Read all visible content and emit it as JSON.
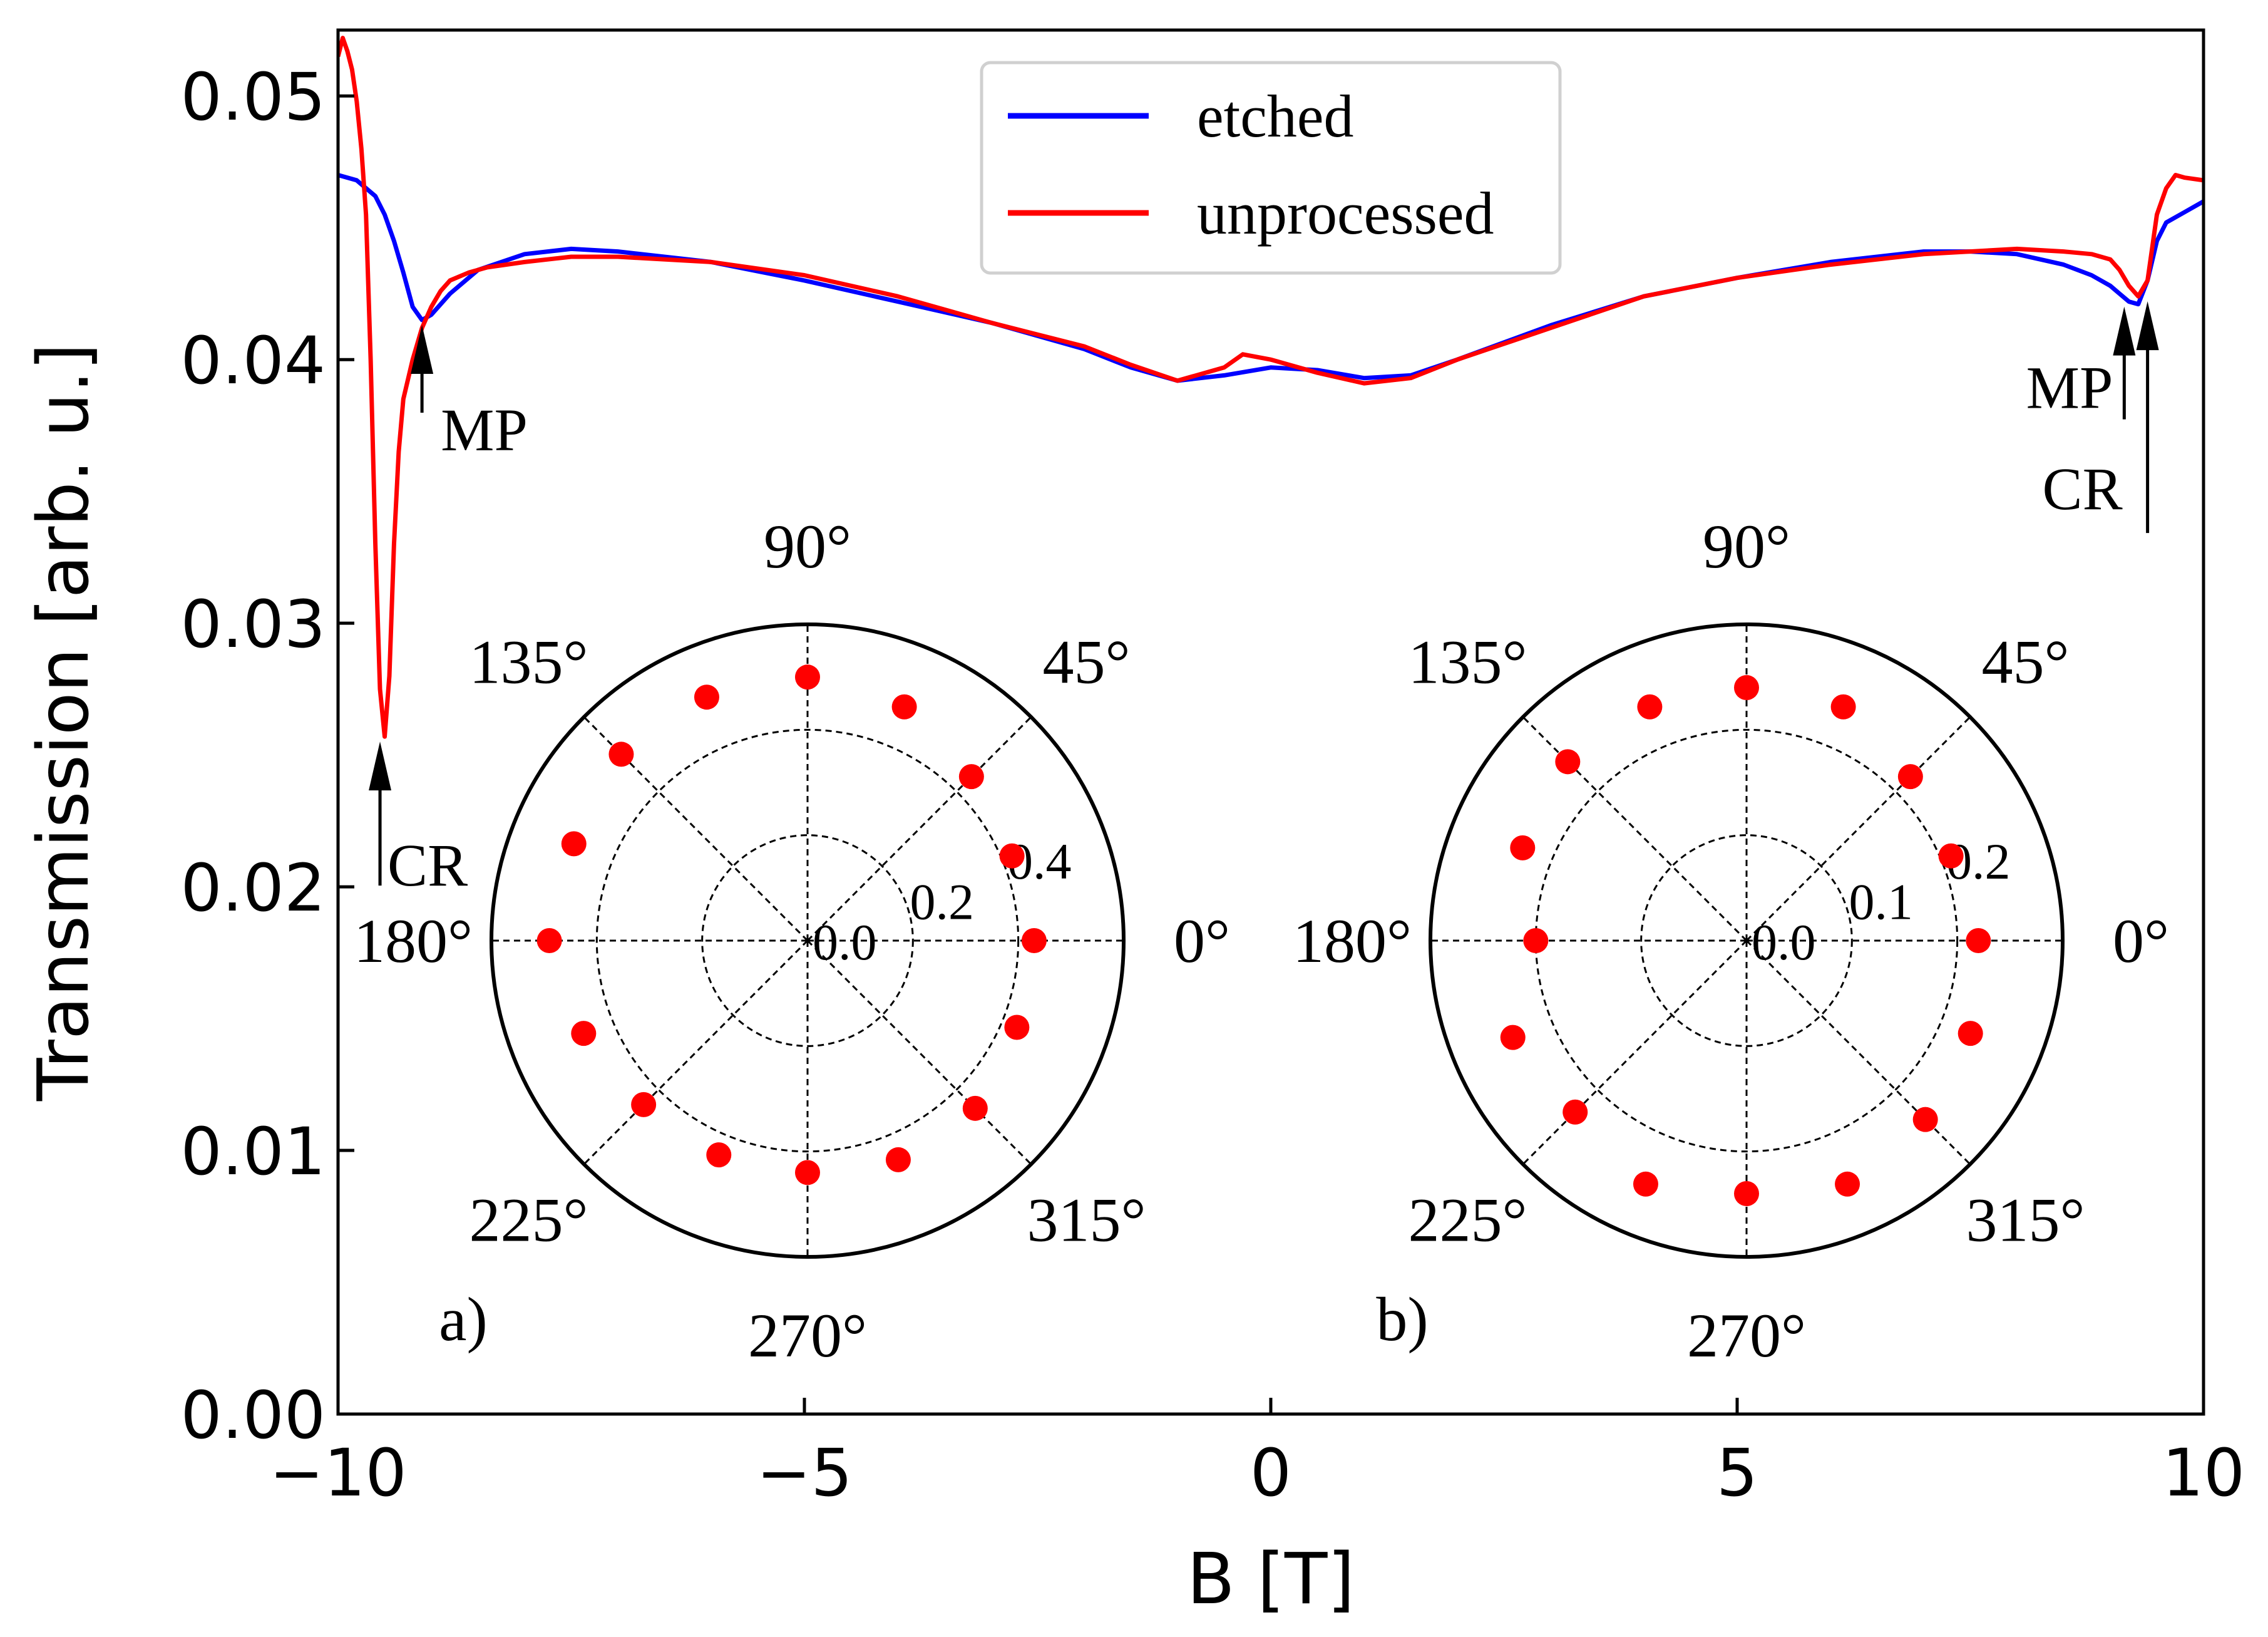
{
  "chart_data": [
    {
      "type": "line",
      "xlabel": "B [T]",
      "ylabel": "Transmission [arb. u.]",
      "xlim": [
        -10,
        10
      ],
      "ylim": [
        0.0,
        0.0525
      ],
      "xticks": [
        -10,
        -5,
        0,
        5,
        10
      ],
      "xtick_labels": [
        "−10",
        "−5",
        "0",
        "5",
        "10"
      ],
      "yticks": [
        0.0,
        0.01,
        0.02,
        0.03,
        0.04,
        0.05
      ],
      "ytick_labels": [
        "0.00",
        "0.01",
        "0.02",
        "0.03",
        "0.04",
        "0.05"
      ],
      "legend_position": "top-center",
      "series": [
        {
          "name": "etched",
          "color": "#0000ff",
          "x": [
            -10,
            -9.8,
            -9.6,
            -9.5,
            -9.4,
            -9.3,
            -9.2,
            -9.1,
            -9.0,
            -8.8,
            -8.5,
            -8.0,
            -7.5,
            -7.0,
            -6.0,
            -5.0,
            -4.0,
            -3.0,
            -2.0,
            -1.5,
            -1.0,
            -0.5,
            0.0,
            0.5,
            1.0,
            1.5,
            2.0,
            3.0,
            4.0,
            5.0,
            6.0,
            7.0,
            7.5,
            8.0,
            8.5,
            8.8,
            9.0,
            9.1,
            9.2,
            9.3,
            9.4,
            9.5,
            9.6,
            9.8,
            10.0
          ],
          "y": [
            0.047,
            0.0468,
            0.0462,
            0.0455,
            0.0445,
            0.0433,
            0.042,
            0.0415,
            0.0417,
            0.0425,
            0.0434,
            0.044,
            0.0442,
            0.0441,
            0.0437,
            0.043,
            0.0422,
            0.0414,
            0.0404,
            0.0397,
            0.0392,
            0.0394,
            0.0397,
            0.0396,
            0.0393,
            0.0394,
            0.04,
            0.0413,
            0.0424,
            0.0431,
            0.0437,
            0.0441,
            0.0441,
            0.044,
            0.0436,
            0.0432,
            0.0428,
            0.0425,
            0.0422,
            0.0421,
            0.043,
            0.0445,
            0.0452,
            0.0456,
            0.046
          ]
        },
        {
          "name": "unprocessed",
          "color": "#ff0000",
          "x": [
            -10,
            -9.95,
            -9.9,
            -9.85,
            -9.8,
            -9.75,
            -9.7,
            -9.65,
            -9.6,
            -9.55,
            -9.5,
            -9.45,
            -9.4,
            -9.35,
            -9.3,
            -9.2,
            -9.1,
            -9.0,
            -8.9,
            -8.8,
            -8.6,
            -8.4,
            -8.2,
            -8.0,
            -7.5,
            -7.0,
            -6.0,
            -5.0,
            -4.0,
            -3.0,
            -2.0,
            -1.5,
            -1.0,
            -0.5,
            -0.3,
            0.0,
            0.5,
            1.0,
            1.5,
            2.0,
            3.0,
            4.0,
            5.0,
            6.0,
            7.0,
            8.0,
            8.5,
            8.8,
            9.0,
            9.1,
            9.2,
            9.3,
            9.4,
            9.5,
            9.6,
            9.7,
            9.8,
            10.0
          ],
          "y": [
            0.0515,
            0.0522,
            0.0517,
            0.051,
            0.0498,
            0.048,
            0.0455,
            0.04,
            0.033,
            0.0275,
            0.0257,
            0.028,
            0.033,
            0.0365,
            0.0385,
            0.04,
            0.0412,
            0.042,
            0.0426,
            0.043,
            0.0433,
            0.0435,
            0.0436,
            0.0437,
            0.0439,
            0.0439,
            0.0437,
            0.0432,
            0.0424,
            0.0414,
            0.0405,
            0.0398,
            0.0392,
            0.0397,
            0.0402,
            0.04,
            0.0395,
            0.0391,
            0.0393,
            0.04,
            0.0412,
            0.0424,
            0.0431,
            0.0436,
            0.044,
            0.0442,
            0.0441,
            0.044,
            0.0438,
            0.0434,
            0.0428,
            0.0424,
            0.043,
            0.0455,
            0.0465,
            0.047,
            0.0469,
            0.0468
          ]
        }
      ],
      "annotations": [
        {
          "text": "MP",
          "x": -9.1,
          "y": 0.0415
        },
        {
          "text": "CR",
          "x": -9.55,
          "y": 0.0257
        },
        {
          "text": "MP",
          "x": 9.15,
          "y": 0.0422
        },
        {
          "text": "CR",
          "x": 9.4,
          "y": 0.0424
        }
      ]
    },
    {
      "type": "scatter",
      "subplot": "polar",
      "panel_label": "a)",
      "color": "#ff0000",
      "rmax": 0.6,
      "r_ticks": [
        0.0,
        0.2,
        0.4
      ],
      "r_tick_labels": [
        "0.0",
        "0.2",
        "0.4"
      ],
      "angle_ticks": [
        0,
        45,
        90,
        135,
        180,
        225,
        270,
        315
      ],
      "angle_labels": [
        "0°",
        "45°",
        "90°",
        "135°",
        "180°",
        "225°",
        "270°",
        "315°"
      ],
      "theta": [
        0,
        22.5,
        45,
        67.5,
        90,
        112.5,
        135,
        157.5,
        180,
        202.5,
        225,
        247.5,
        270,
        292.5,
        315,
        337.5
      ],
      "r": [
        0.43,
        0.42,
        0.44,
        0.48,
        0.5,
        0.5,
        0.5,
        0.48,
        0.49,
        0.46,
        0.44,
        0.44,
        0.44,
        0.45,
        0.45,
        0.43
      ]
    },
    {
      "type": "scatter",
      "subplot": "polar",
      "panel_label": "b)",
      "color": "#ff0000",
      "rmax": 0.3,
      "r_ticks": [
        0.0,
        0.1,
        0.2
      ],
      "r_tick_labels": [
        "0.0",
        "0.1",
        "0.2"
      ],
      "angle_ticks": [
        0,
        45,
        90,
        135,
        180,
        225,
        270,
        315
      ],
      "angle_labels": [
        "0°",
        "45°",
        "90°",
        "135°",
        "180°",
        "225°",
        "270°",
        "315°"
      ],
      "theta": [
        0,
        22.5,
        45,
        67.5,
        90,
        112.5,
        135,
        157.5,
        180,
        202.5,
        225,
        247.5,
        270,
        292.5,
        315,
        337.5
      ],
      "r": [
        0.22,
        0.21,
        0.22,
        0.24,
        0.24,
        0.24,
        0.24,
        0.23,
        0.2,
        0.24,
        0.23,
        0.25,
        0.24,
        0.25,
        0.24,
        0.23
      ]
    }
  ]
}
